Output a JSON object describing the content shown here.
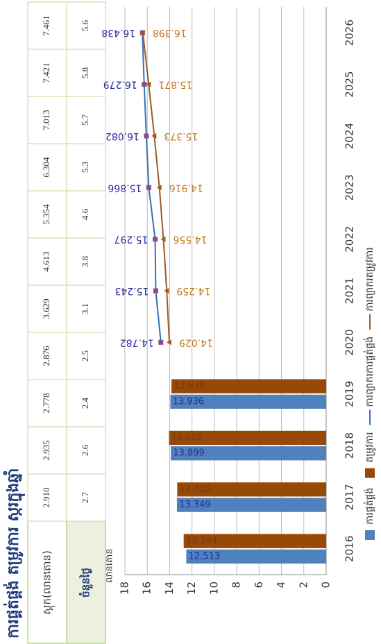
{
  "title": "ការផ្គត់ផ្គង់ តម្រូវការ ស្ករក្នុងឆ្នាំ",
  "table": {
    "rows": [
      {
        "label": "ស្តុក(លានតោន)",
        "values": [
          "2.910",
          "2.935",
          "2.778",
          "2.876",
          "3.629",
          "4.613",
          "5.354",
          "6.304",
          "7.013",
          "7.421",
          "7.461"
        ]
      },
      {
        "label": "ចំនួនថ្ងៃ",
        "values": [
          "2.7",
          "2.6",
          "2.4",
          "2.5",
          "3.1",
          "3.8",
          "4.6",
          "5.3",
          "5.7",
          "5.8",
          "5.6"
        ]
      }
    ]
  },
  "chart_data": {
    "type": "bar",
    "y_label": "លានតោន",
    "categories": [
      "2016",
      "2017",
      "2018",
      "2019",
      "2020",
      "2021",
      "2022",
      "2023",
      "2024",
      "2025",
      "2026"
    ],
    "ylim": [
      0,
      18
    ],
    "yticks": [
      0,
      2,
      4,
      6,
      8,
      10,
      12,
      14,
      16,
      18
    ],
    "grid": true,
    "legend": "bottom",
    "series": [
      {
        "name": "ការផ្គត់ផ្គង់",
        "type": "bar",
        "color": "#4f81bd",
        "values": [
          12.513,
          13.349,
          13.899,
          13.936,
          null,
          null,
          null,
          null,
          null,
          null,
          null
        ]
      },
      {
        "name": "តម្រូវការ",
        "type": "bar",
        "color": "#984807",
        "values": [
          12.744,
          13.325,
          14.056,
          13.838,
          null,
          null,
          null,
          null,
          null,
          null,
          null
        ]
      },
      {
        "name": "ការព្យាករការផ្គត់ផ្គង់",
        "type": "line",
        "color": "#2e75b6",
        "label_color": "#2a2aa0",
        "marker": "square",
        "values": [
          null,
          null,
          null,
          null,
          14.782,
          15.243,
          15.297,
          15.866,
          16.082,
          16.279,
          16.438
        ]
      },
      {
        "name": "ការព្យាករតម្រូវការ",
        "type": "line",
        "color": "#9c5a28",
        "label_color": "#c07820",
        "marker": "triangle",
        "values": [
          null,
          null,
          null,
          null,
          14.029,
          14.259,
          14.556,
          14.916,
          15.373,
          15.871,
          16.398
        ]
      }
    ]
  }
}
